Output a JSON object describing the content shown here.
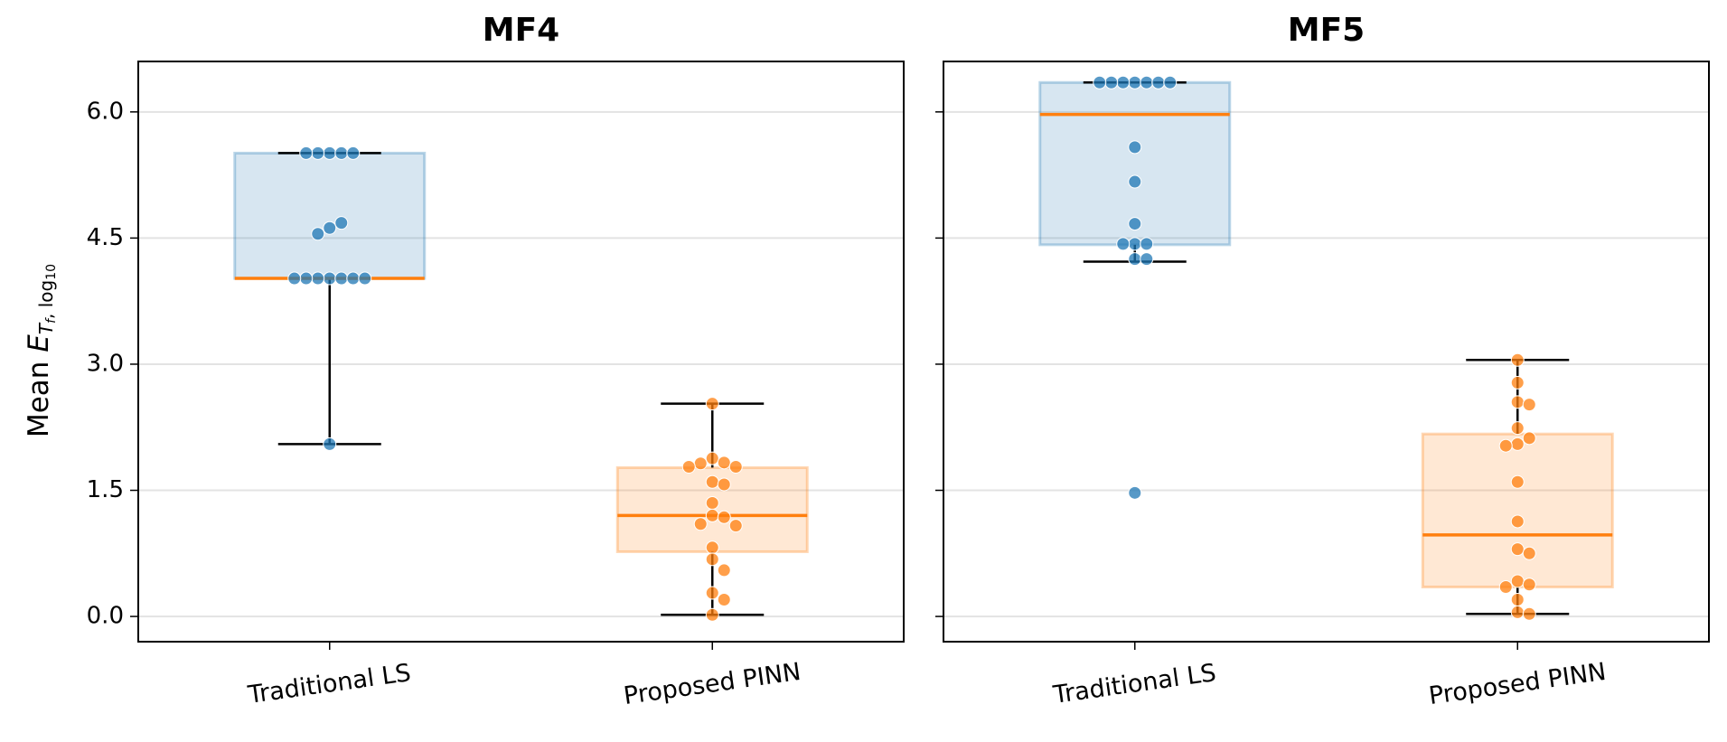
{
  "chart_data": [
    {
      "type": "box",
      "title": "MF4",
      "categories": [
        "Traditional LS",
        "Proposed PINN"
      ],
      "ylabel": "Mean E_{T_f, log10}",
      "ylim": [
        -0.3,
        6.6
      ],
      "yticks": [
        "0.0",
        "1.5",
        "3.0",
        "4.5",
        "6.0"
      ],
      "ytick_values": [
        0.0,
        1.5,
        3.0,
        4.5,
        6.0
      ],
      "grid": "horizontal",
      "series": [
        {
          "category": "Traditional LS",
          "color": "#1f77b4",
          "box": {
            "q1": 4.02,
            "median": 4.02,
            "q3": 5.51,
            "whisker_low": 2.05,
            "whisker_high": 5.51
          },
          "points": [
            5.51,
            5.51,
            5.51,
            5.51,
            5.51,
            4.62,
            4.68,
            4.55,
            4.02,
            4.02,
            4.02,
            4.02,
            4.02,
            4.02,
            4.02,
            2.05
          ]
        },
        {
          "category": "Proposed PINN",
          "color": "#ff7f0e",
          "box": {
            "q1": 0.77,
            "median": 1.2,
            "q3": 1.77,
            "whisker_low": 0.02,
            "whisker_high": 2.53
          },
          "points": [
            2.53,
            1.88,
            1.83,
            1.82,
            1.78,
            1.78,
            1.6,
            1.57,
            1.35,
            1.2,
            1.18,
            1.1,
            1.08,
            0.82,
            0.68,
            0.55,
            0.28,
            0.2,
            0.02
          ]
        }
      ]
    },
    {
      "type": "box",
      "title": "MF5",
      "categories": [
        "Traditional LS",
        "Proposed PINN"
      ],
      "ylim": [
        -0.3,
        6.6
      ],
      "yticks": [
        "0.0",
        "1.5",
        "3.0",
        "4.5",
        "6.0"
      ],
      "ytick_values": [
        0.0,
        1.5,
        3.0,
        4.5,
        6.0
      ],
      "grid": "horizontal",
      "series": [
        {
          "category": "Traditional LS",
          "color": "#1f77b4",
          "box": {
            "q1": 4.42,
            "median": 5.97,
            "q3": 6.35,
            "whisker_low": 4.22,
            "whisker_high": 6.35
          },
          "points": [
            6.35,
            6.35,
            6.35,
            6.35,
            6.35,
            6.35,
            6.35,
            5.58,
            5.17,
            4.67,
            4.43,
            4.43,
            4.43,
            4.25,
            4.25,
            1.47
          ]
        },
        {
          "category": "Proposed PINN",
          "color": "#ff7f0e",
          "box": {
            "q1": 0.35,
            "median": 0.97,
            "q3": 2.17,
            "whisker_low": 0.03,
            "whisker_high": 3.05
          },
          "points": [
            3.05,
            2.78,
            2.55,
            2.52,
            2.24,
            2.12,
            2.05,
            2.03,
            1.6,
            1.13,
            0.8,
            0.75,
            0.42,
            0.38,
            0.35,
            0.2,
            0.05,
            0.03
          ]
        }
      ]
    }
  ]
}
